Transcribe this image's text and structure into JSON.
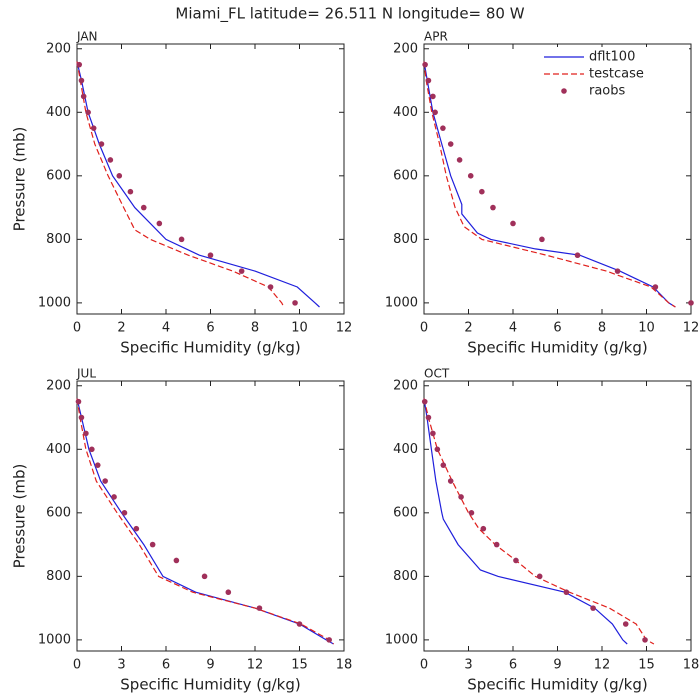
{
  "title": "Miami_FL  latitude= 26.511 N longitude= 80 W",
  "chart_data": [
    {
      "type": "line",
      "title": "JAN",
      "xlabel": "Specific Humidity (g/kg)",
      "ylabel": "Pressure (mb)",
      "xlim": [
        0,
        12
      ],
      "xticks": [
        0,
        2,
        4,
        6,
        8,
        10,
        12
      ],
      "ylim": [
        1035,
        185
      ],
      "yticks": [
        200,
        400,
        600,
        800,
        1000
      ],
      "series": [
        {
          "color": "#1f1fdc",
          "style": "solid",
          "x": [
            0,
            0.2,
            0.5,
            1.0,
            1.6,
            2.6,
            4.0,
            5.5,
            8.0,
            9.9,
            10.7,
            10.9
          ],
          "y": [
            240,
            300,
            400,
            500,
            600,
            700,
            800,
            850,
            900,
            950,
            1000,
            1013
          ]
        },
        {
          "color": "#e0201c",
          "style": "dashed",
          "x": [
            0,
            0.15,
            0.4,
            0.8,
            1.4,
            2.1,
            2.6,
            3.3,
            5.0,
            7.0,
            8.6,
            9.2,
            9.3
          ],
          "y": [
            240,
            300,
            400,
            500,
            600,
            700,
            770,
            800,
            850,
            900,
            950,
            1000,
            1013
          ]
        },
        {
          "color": "#a0305a",
          "style": "points",
          "x": [
            0.1,
            0.2,
            0.3,
            0.5,
            0.75,
            1.1,
            1.5,
            1.9,
            2.4,
            3.0,
            3.7,
            4.7,
            6.0,
            7.4,
            8.7,
            9.8
          ],
          "y": [
            250,
            300,
            350,
            400,
            450,
            500,
            550,
            600,
            650,
            700,
            750,
            800,
            850,
            900,
            950,
            1000
          ]
        }
      ]
    },
    {
      "type": "line",
      "title": "APR",
      "xlabel": "Specific Humidity (g/kg)",
      "legend": "upper right",
      "xlim": [
        0,
        12
      ],
      "xticks": [
        0,
        2,
        4,
        6,
        8,
        10,
        12
      ],
      "ylim": [
        1035,
        185
      ],
      "yticks": [
        200,
        400,
        600,
        800,
        1000
      ],
      "series": [
        {
          "name": "dflt100",
          "color": "#1f1fdc",
          "style": "solid",
          "x": [
            0,
            0.15,
            0.4,
            0.8,
            1.2,
            1.7,
            1.7,
            2.4,
            3.0,
            5.0,
            7.0,
            8.8,
            10.3,
            11.0,
            11.3
          ],
          "y": [
            240,
            300,
            400,
            500,
            600,
            690,
            720,
            780,
            800,
            830,
            850,
            900,
            950,
            1000,
            1013
          ]
        },
        {
          "name": "testcase",
          "color": "#e0201c",
          "style": "dashed",
          "x": [
            0,
            0.1,
            0.35,
            0.7,
            1.0,
            1.4,
            1.8,
            2.6,
            5.5,
            8.2,
            10.2,
            11.0,
            11.3
          ],
          "y": [
            240,
            300,
            400,
            500,
            600,
            700,
            760,
            800,
            850,
            900,
            950,
            1000,
            1013
          ]
        },
        {
          "name": "raobs",
          "color": "#a0305a",
          "style": "points",
          "x": [
            0.05,
            0.2,
            0.4,
            0.5,
            0.85,
            1.2,
            1.6,
            2.1,
            2.6,
            3.1,
            4.0,
            5.3,
            6.9,
            8.7,
            10.4,
            12.0
          ],
          "y": [
            250,
            300,
            350,
            400,
            450,
            500,
            550,
            600,
            650,
            700,
            750,
            800,
            850,
            900,
            950,
            1000
          ]
        }
      ]
    },
    {
      "type": "line",
      "title": "JUL",
      "xlabel": "Specific Humidity (g/kg)",
      "ylabel": "Pressure (mb)",
      "xlim": [
        0,
        18
      ],
      "xticks": [
        0,
        3,
        6,
        9,
        12,
        15,
        18
      ],
      "ylim": [
        1035,
        185
      ],
      "yticks": [
        200,
        400,
        600,
        800,
        1000
      ],
      "series": [
        {
          "color": "#1f1fdc",
          "style": "solid",
          "x": [
            0,
            0.3,
            0.8,
            1.6,
            3.0,
            4.5,
            5.8,
            8.0,
            12.0,
            15.0,
            16.8,
            17.3
          ],
          "y": [
            240,
            300,
            400,
            500,
            600,
            700,
            800,
            850,
            900,
            950,
            1000,
            1013
          ]
        },
        {
          "color": "#e0201c",
          "style": "dashed",
          "x": [
            0,
            0.2,
            0.6,
            1.3,
            2.7,
            4.2,
            5.5,
            7.8,
            12.0,
            15.1,
            17.0,
            17.3
          ],
          "y": [
            240,
            300,
            400,
            500,
            600,
            700,
            800,
            850,
            900,
            950,
            1000,
            1013
          ]
        },
        {
          "color": "#a0305a",
          "style": "points",
          "x": [
            0.1,
            0.3,
            0.6,
            1.0,
            1.4,
            1.9,
            2.5,
            3.2,
            4.0,
            5.1,
            6.7,
            8.6,
            10.2,
            12.3,
            15.0,
            17.0
          ],
          "y": [
            250,
            300,
            350,
            400,
            450,
            500,
            550,
            600,
            650,
            700,
            750,
            800,
            850,
            900,
            950,
            1000
          ]
        }
      ]
    },
    {
      "type": "line",
      "title": "OCT",
      "xlabel": "Specific Humidity (g/kg)",
      "xlim": [
        0,
        18
      ],
      "xticks": [
        0,
        3,
        6,
        9,
        12,
        15,
        18
      ],
      "ylim": [
        1035,
        185
      ],
      "yticks": [
        200,
        400,
        600,
        800,
        1000
      ],
      "series": [
        {
          "color": "#1f1fdc",
          "style": "solid",
          "x": [
            0,
            0.2,
            0.5,
            0.8,
            1.2,
            1.3,
            2.3,
            3.8,
            5.0,
            9.5,
            11.5,
            12.7,
            13.4,
            13.7
          ],
          "y": [
            240,
            300,
            400,
            500,
            600,
            620,
            700,
            780,
            800,
            850,
            900,
            950,
            1000,
            1013
          ]
        },
        {
          "color": "#e0201c",
          "style": "dashed",
          "x": [
            0,
            0.3,
            0.9,
            1.9,
            3.0,
            3.7,
            4.8,
            6.2,
            7.5,
            9.8,
            12.5,
            14.3,
            15.0,
            15.5
          ],
          "y": [
            240,
            300,
            400,
            500,
            600,
            650,
            700,
            750,
            800,
            850,
            900,
            950,
            1000,
            1013
          ]
        },
        {
          "color": "#a0305a",
          "style": "points",
          "x": [
            0.05,
            0.3,
            0.6,
            0.9,
            1.3,
            1.8,
            2.5,
            3.2,
            4.0,
            4.9,
            6.2,
            7.8,
            9.6,
            11.4,
            13.6,
            14.9
          ],
          "y": [
            250,
            300,
            350,
            400,
            450,
            500,
            550,
            600,
            650,
            700,
            750,
            800,
            850,
            900,
            950,
            1000
          ]
        }
      ]
    }
  ]
}
